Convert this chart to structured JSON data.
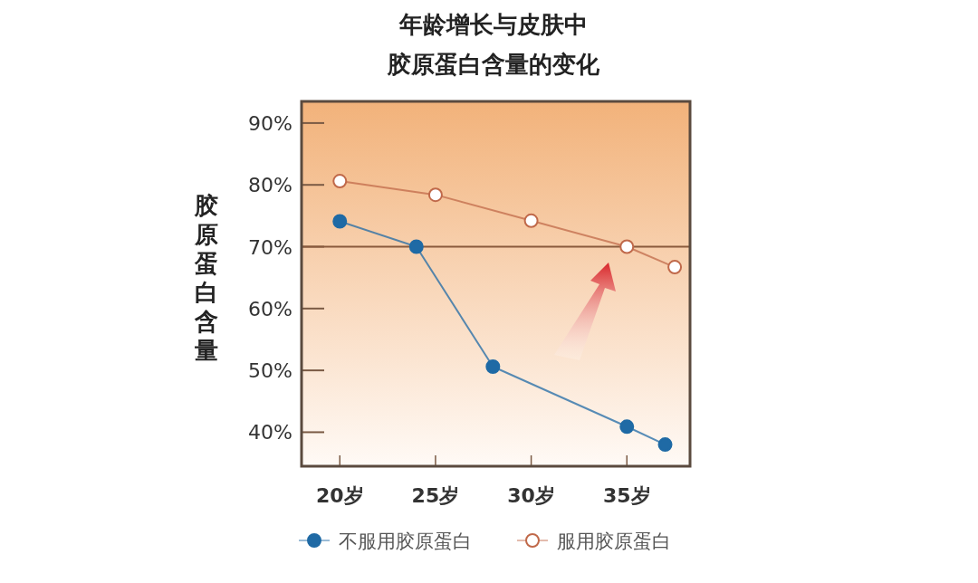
{
  "chart_data": {
    "type": "line",
    "title": "年龄增长与皮肤中胶原蛋白含量的变化",
    "ylabel": "胶原蛋白含量",
    "series": [
      {
        "name": "不服用胶原蛋白",
        "color": "#1f6aa5",
        "x": [
          20,
          24,
          28,
          35,
          37
        ],
        "values": [
          74.1,
          70,
          50.6,
          40.9,
          38
        ]
      },
      {
        "name": "服用胶原蛋白",
        "color": "#c0694a",
        "x": [
          20,
          25,
          30,
          35,
          37.5
        ],
        "values": [
          80.6,
          78.4,
          74.2,
          70,
          66.7
        ]
      }
    ],
    "xlim": [
      18,
      38.3
    ],
    "xticks": [
      {
        "value": 20,
        "label": "20岁"
      },
      {
        "value": 25,
        "label": "25岁"
      },
      {
        "value": 30,
        "label": "30岁"
      },
      {
        "value": 35,
        "label": "35岁"
      }
    ],
    "ylim": [
      34.5,
      93.5
    ],
    "yticks": [
      {
        "value": 40,
        "label": "40%"
      },
      {
        "value": 50,
        "label": "50%"
      },
      {
        "value": 60,
        "label": "60%"
      },
      {
        "value": 70,
        "label": "70%"
      },
      {
        "value": 80,
        "label": "80%"
      },
      {
        "value": 90,
        "label": "90%"
      }
    ],
    "ref_lines": [
      {
        "axis": "y",
        "value": 70,
        "label": null,
        "color": "#8a5a3c"
      }
    ],
    "marker": "circle",
    "legend": "bottom",
    "grid": false
  }
}
